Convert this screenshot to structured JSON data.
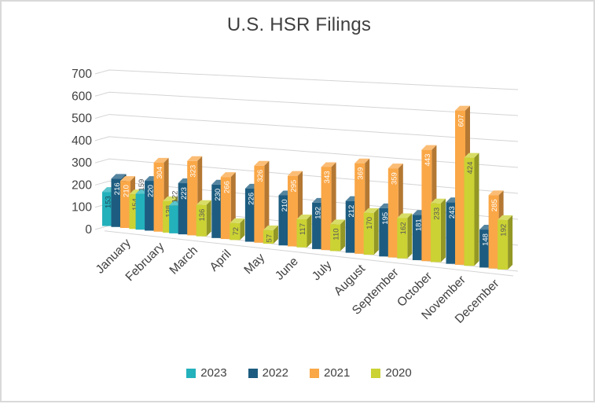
{
  "title": "U.S. HSR Filings",
  "chart_data": {
    "type": "bar",
    "projection": "3d-clustered-column",
    "title": "U.S. HSR Filings",
    "categories": [
      "January",
      "February",
      "March",
      "April",
      "May",
      "June",
      "July",
      "August",
      "September",
      "October",
      "November",
      "December"
    ],
    "series": [
      {
        "name": "2023",
        "color": "#23b1bc",
        "label_color": "#1d4456",
        "label_outside_color": "#595959",
        "label_outside_indices": [
          1,
          2
        ],
        "values": [
          153,
          159,
          122,
          null,
          null,
          null,
          null,
          null,
          null,
          null,
          null,
          null
        ]
      },
      {
        "name": "2022",
        "color": "#1d5c80",
        "label_color": "#ffffff",
        "label_outside_indices": [],
        "values": [
          216,
          220,
          223,
          230,
          226,
          210,
          192,
          212,
          195,
          181,
          243,
          148
        ]
      },
      {
        "name": "2021",
        "color": "#faa747",
        "label_color": "#ffffff",
        "label_outside_indices": [],
        "values": [
          210,
          304,
          323,
          266,
          326,
          295,
          343,
          369,
          359,
          443,
          607,
          285
        ]
      },
      {
        "name": "2020",
        "color": "#cbd233",
        "label_color": "#595959",
        "label_outside_indices": [],
        "values": [
          154,
          138,
          136,
          72,
          57,
          117,
          110,
          170,
          162,
          233,
          424,
          192
        ]
      }
    ],
    "ylim": [
      0,
      700
    ],
    "ytick_step": 100,
    "yticks": [
      0,
      100,
      200,
      300,
      400,
      500,
      600,
      700
    ],
    "grid": true,
    "data_labels": "inside-end-rotated",
    "legend_position": "bottom",
    "legend_items": [
      "2023",
      "2022",
      "2021",
      "2020"
    ]
  },
  "colors": {
    "text": "#404040",
    "outside_label_text": "#595959",
    "gridline": "#d4d4d4",
    "frame_border": "#d9d9d9",
    "background": "#ffffff"
  }
}
